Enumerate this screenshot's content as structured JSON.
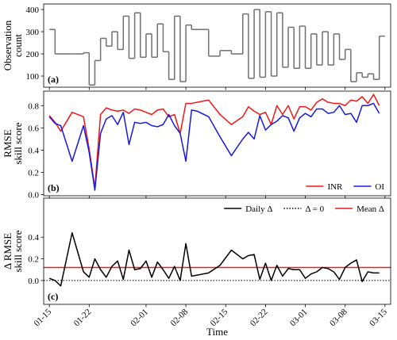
{
  "chart_data": [
    {
      "type": "step",
      "label": "(a)",
      "ylabel": [
        "Observation",
        "count"
      ],
      "x": [
        "01-15",
        "01-16",
        "01-17",
        "01-19",
        "01-21",
        "01-22",
        "01-23",
        "01-24",
        "01-25",
        "01-26",
        "01-27",
        "01-28",
        "01-29",
        "01-30",
        "01-31",
        "02-01",
        "02-02",
        "02-03",
        "02-04",
        "02-05",
        "02-06",
        "02-07",
        "02-08",
        "02-09",
        "02-10",
        "02-12",
        "02-14",
        "02-16",
        "02-18",
        "02-19",
        "02-20",
        "02-21",
        "02-22",
        "02-23",
        "02-24",
        "02-25",
        "02-26",
        "02-27",
        "02-28",
        "03-01",
        "03-02",
        "03-03",
        "03-04",
        "03-05",
        "03-06",
        "03-07",
        "03-08",
        "03-09",
        "03-10",
        "03-11",
        "03-12",
        "03-13",
        "03-14"
      ],
      "series": [
        {
          "color": "#707070",
          "values": [
            310,
            200,
            200,
            200,
            205,
            60,
            170,
            270,
            235,
            300,
            220,
            370,
            180,
            385,
            185,
            290,
            185,
            335,
            210,
            85,
            370,
            75,
            330,
            310,
            310,
            190,
            215,
            200,
            380,
            90,
            400,
            95,
            390,
            100,
            385,
            140,
            320,
            135,
            325,
            135,
            290,
            150,
            300,
            150,
            290,
            175,
            220,
            75,
            115,
            95,
            110,
            85,
            280
          ]
        }
      ],
      "xlim": [
        "01-14",
        "03-16"
      ],
      "ylim": [
        50,
        425
      ],
      "yticks": [
        100,
        200,
        300,
        400
      ]
    },
    {
      "type": "line",
      "label": "(b)",
      "ylabel": [
        "RMSE",
        "skill score"
      ],
      "legend": "lower right",
      "x": [
        "01-15",
        "01-16",
        "01-17",
        "01-19",
        "01-21",
        "01-22",
        "01-23",
        "01-24",
        "01-25",
        "01-26",
        "01-27",
        "01-28",
        "01-29",
        "01-30",
        "01-31",
        "02-01",
        "02-02",
        "02-03",
        "02-04",
        "02-05",
        "02-06",
        "02-07",
        "02-08",
        "02-09",
        "02-10",
        "02-12",
        "02-14",
        "02-16",
        "02-18",
        "02-19",
        "02-20",
        "02-21",
        "02-22",
        "02-23",
        "02-24",
        "02-25",
        "02-26",
        "02-27",
        "02-28",
        "03-01",
        "03-02",
        "03-03",
        "03-04",
        "03-05",
        "03-06",
        "03-07",
        "03-08",
        "03-09",
        "03-10",
        "03-11",
        "03-12",
        "03-13",
        "03-14"
      ],
      "series": [
        {
          "name": "INR",
          "color": "#f01818",
          "values": [
            0.71,
            0.65,
            0.57,
            0.74,
            0.7,
            0.41,
            0.06,
            0.72,
            0.78,
            0.76,
            0.75,
            0.76,
            0.73,
            0.77,
            0.76,
            0.74,
            0.72,
            0.76,
            0.77,
            0.7,
            0.72,
            0.55,
            0.82,
            0.82,
            0.83,
            0.85,
            0.72,
            0.63,
            0.7,
            0.79,
            0.75,
            0.72,
            0.74,
            0.63,
            0.8,
            0.72,
            0.8,
            0.68,
            0.79,
            0.79,
            0.76,
            0.83,
            0.86,
            0.83,
            0.82,
            0.82,
            0.8,
            0.85,
            0.84,
            0.88,
            0.82,
            0.9,
            0.8
          ]
        },
        {
          "name": "OI",
          "color": "#1818e0",
          "values": [
            0.7,
            0.64,
            0.62,
            0.3,
            0.62,
            0.38,
            0.04,
            0.55,
            0.68,
            0.71,
            0.63,
            0.74,
            0.45,
            0.65,
            0.64,
            0.65,
            0.62,
            0.61,
            0.63,
            0.72,
            0.62,
            0.55,
            0.3,
            0.76,
            0.75,
            0.7,
            0.52,
            0.35,
            0.5,
            0.56,
            0.5,
            0.71,
            0.58,
            0.63,
            0.66,
            0.71,
            0.69,
            0.57,
            0.69,
            0.73,
            0.7,
            0.77,
            0.77,
            0.73,
            0.74,
            0.8,
            0.72,
            0.73,
            0.65,
            0.8,
            0.8,
            0.82,
            0.73
          ]
        }
      ],
      "xlim": [
        "01-14",
        "03-16"
      ],
      "ylim": [
        -0.01,
        0.93
      ],
      "yticks": [
        {
          "value": 0,
          "label": "0.0"
        },
        0.2,
        0.4,
        0.6,
        0.8
      ]
    },
    {
      "type": "line",
      "label": "(c)",
      "ylabel": [
        "Δ RMSE",
        "skill score"
      ],
      "xlabel": "Time",
      "legend": "upper right",
      "x": [
        "01-15",
        "01-16",
        "01-17",
        "01-19",
        "01-21",
        "01-22",
        "01-23",
        "01-24",
        "01-25",
        "01-26",
        "01-27",
        "01-28",
        "01-29",
        "01-30",
        "01-31",
        "02-01",
        "02-02",
        "02-03",
        "02-04",
        "02-05",
        "02-06",
        "02-07",
        "02-08",
        "02-09",
        "02-10",
        "02-12",
        "02-14",
        "02-16",
        "02-18",
        "02-19",
        "02-20",
        "02-21",
        "02-22",
        "02-23",
        "02-24",
        "02-25",
        "02-26",
        "02-27",
        "02-28",
        "03-01",
        "03-02",
        "03-03",
        "03-04",
        "03-05",
        "03-06",
        "03-07",
        "03-08",
        "03-09",
        "03-10",
        "03-11",
        "03-12",
        "03-13",
        "03-14"
      ],
      "series": [
        {
          "name": "Daily Δ",
          "color": "#000000",
          "values": [
            0.02,
            0.0,
            -0.05,
            0.44,
            0.08,
            0.03,
            0.2,
            0.1,
            0.03,
            0.13,
            0.18,
            0.01,
            0.28,
            0.1,
            0.11,
            0.18,
            0.03,
            0.17,
            0.1,
            0.02,
            0.13,
            0.0,
            0.34,
            0.04,
            0.05,
            0.07,
            0.14,
            0.28,
            0.2,
            0.23,
            0.24,
            0.01,
            0.16,
            0.0,
            0.14,
            0.04,
            0.11,
            0.1,
            0.1,
            0.02,
            0.06,
            0.08,
            0.12,
            0.11,
            0.08,
            0.01,
            0.12,
            0.16,
            0.19,
            -0.01,
            0.08,
            0.07,
            0.07
          ]
        }
      ],
      "hlines": [
        {
          "name": "Δ = 0",
          "value": 0,
          "color": "#000000",
          "style": "dotted"
        },
        {
          "name": "Mean Δ",
          "value": 0.12,
          "color": "#f01818",
          "style": "solid"
        }
      ],
      "xlim": [
        "01-14",
        "03-16"
      ],
      "ylim": [
        -0.22,
        0.76
      ],
      "yticks": [
        {
          "value": 0,
          "label": "0.0"
        },
        0.2,
        0.4
      ],
      "xticks": [
        "01-15",
        "01-22",
        "02-01",
        "02-08",
        "02-15",
        "02-22",
        "03-01",
        "03-08",
        "03-15"
      ]
    }
  ]
}
